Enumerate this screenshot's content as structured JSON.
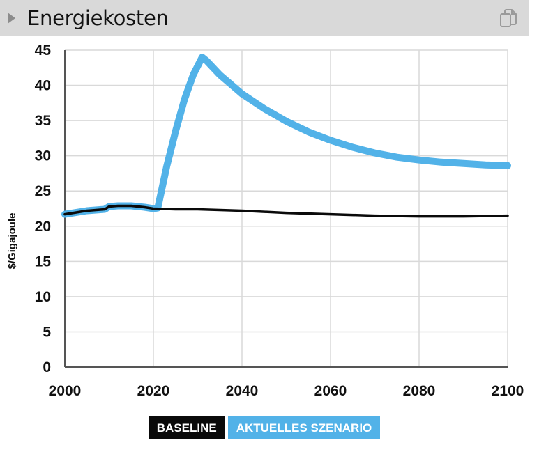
{
  "header": {
    "title": "Energiekosten",
    "expand_icon": "caret-right-icon",
    "copy_icon": "copy-icon"
  },
  "colors": {
    "baseline": "#0a0a0a",
    "scenario": "#52b2e8",
    "header_bg": "#d9d9d9",
    "grid": "#d9d9d9"
  },
  "chart_data": {
    "type": "line",
    "title": "",
    "xlabel": "",
    "ylabel": "$/Gigajoule",
    "xlim": [
      2000,
      2100
    ],
    "ylim": [
      0,
      45
    ],
    "xticks": [
      2000,
      2020,
      2040,
      2060,
      2080,
      2100
    ],
    "yticks": [
      0,
      5,
      10,
      15,
      20,
      25,
      30,
      35,
      40,
      45
    ],
    "grid": true,
    "legend_position": "bottom-center",
    "series": [
      {
        "name": "BASELINE",
        "x": [
          2000,
          2005,
          2009,
          2010,
          2012,
          2015,
          2018,
          2020,
          2025,
          2030,
          2040,
          2050,
          2060,
          2070,
          2080,
          2090,
          2100
        ],
        "y": [
          21.7,
          22.2,
          22.4,
          22.8,
          22.9,
          22.9,
          22.7,
          22.5,
          22.4,
          22.4,
          22.2,
          21.9,
          21.7,
          21.5,
          21.4,
          21.4,
          21.5
        ]
      },
      {
        "name": "AKTUELLES SZENARIO",
        "x": [
          2000,
          2005,
          2009,
          2010,
          2012,
          2015,
          2018,
          2020,
          2021,
          2023,
          2025,
          2027,
          2029,
          2031,
          2032,
          2035,
          2040,
          2045,
          2050,
          2055,
          2060,
          2065,
          2070,
          2075,
          2080,
          2085,
          2090,
          2095,
          2100
        ],
        "y": [
          21.7,
          22.2,
          22.4,
          22.8,
          22.9,
          22.9,
          22.7,
          22.5,
          22.6,
          28.5,
          33.5,
          38.0,
          41.5,
          44.0,
          43.5,
          41.5,
          38.8,
          36.7,
          34.9,
          33.4,
          32.2,
          31.2,
          30.4,
          29.8,
          29.4,
          29.1,
          28.9,
          28.7,
          28.6
        ]
      }
    ]
  }
}
